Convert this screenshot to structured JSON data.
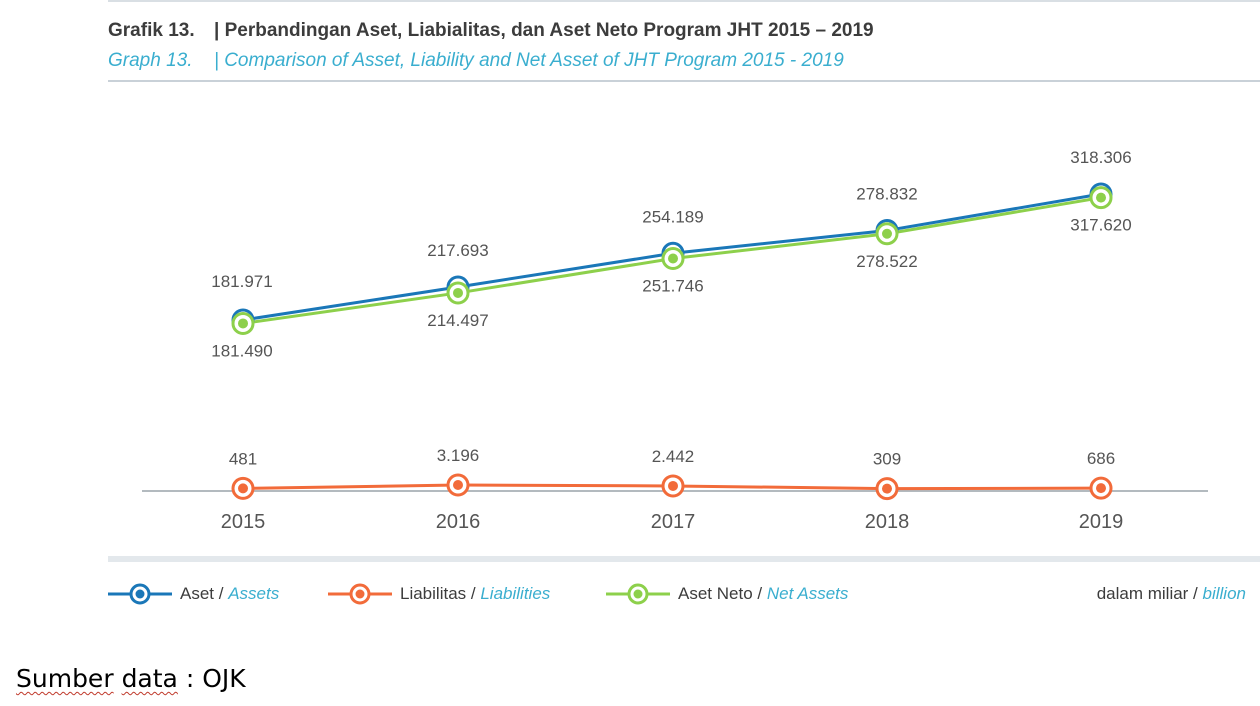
{
  "header": {
    "label_id": "Grafik 13.",
    "title_id": "| Perbandingan Aset, Liabialitas, dan Aset Neto Program JHT 2015 – 2019",
    "label_en": "Graph 13.",
    "title_en": "| Comparison of Asset, Liability and Net Asset of JHT Program 2015 - 2019"
  },
  "chart_data": {
    "type": "line",
    "categories": [
      "2015",
      "2016",
      "2017",
      "2018",
      "2019"
    ],
    "series": [
      {
        "name": "Aset / Assets",
        "color": "#1a77b8",
        "values": [
          181971,
          217693,
          254189,
          278832,
          318306
        ],
        "labels": [
          "181.971",
          "217.693",
          "254.189",
          "278.832",
          "318.306"
        ]
      },
      {
        "name": "Liabilitas / Liabilities",
        "color": "#f26b3a",
        "values": [
          481,
          3196,
          2442,
          309,
          686
        ],
        "labels": [
          "481",
          "3.196",
          "2.442",
          "309",
          "686"
        ]
      },
      {
        "name": "Aset Neto / Net Assets",
        "color": "#8dd04b",
        "values": [
          181490,
          214497,
          251746,
          278522,
          317620
        ],
        "labels": [
          "181.490",
          "214.497",
          "251.746",
          "278.522",
          "317.620"
        ]
      }
    ],
    "unit": "dalam miliar / billion"
  },
  "legend": {
    "assets_id": "Aset / ",
    "assets_en": "Assets",
    "liab_id": "Liabilitas / ",
    "liab_en": "Liabilities",
    "net_id": "Aset Neto / ",
    "net_en": "Net  Assets",
    "unit_id": "dalam miliar / ",
    "unit_en": "billion"
  },
  "source": {
    "w1": "Sumber",
    "w2": "data",
    "rest": " : OJK"
  }
}
